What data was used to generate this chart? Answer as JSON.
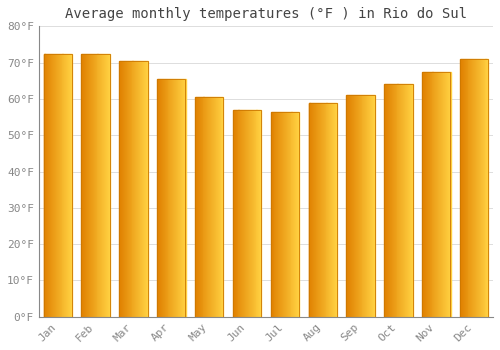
{
  "title": "Average monthly temperatures (°F ) in Rio do Sul",
  "months": [
    "Jan",
    "Feb",
    "Mar",
    "Apr",
    "May",
    "Jun",
    "Jul",
    "Aug",
    "Sep",
    "Oct",
    "Nov",
    "Dec"
  ],
  "values": [
    72.5,
    72.5,
    70.5,
    65.5,
    60.5,
    57.0,
    56.5,
    59.0,
    61.0,
    64.0,
    67.5,
    71.0
  ],
  "bar_color_left": "#E08000",
  "bar_color_right": "#FFD040",
  "bar_edge_color": "#CC7700",
  "background_color": "#FFFFFF",
  "grid_color": "#DDDDDD",
  "ylim": [
    0,
    80
  ],
  "yticks": [
    0,
    10,
    20,
    30,
    40,
    50,
    60,
    70,
    80
  ],
  "ytick_labels": [
    "0°F",
    "10°F",
    "20°F",
    "30°F",
    "40°F",
    "50°F",
    "60°F",
    "70°F",
    "80°F"
  ],
  "title_fontsize": 10,
  "tick_fontsize": 8,
  "tick_color": "#888888",
  "font_family": "monospace"
}
